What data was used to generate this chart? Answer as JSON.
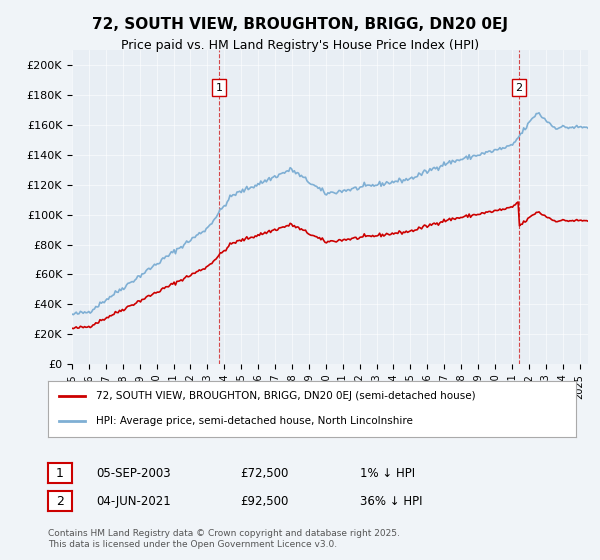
{
  "title": "72, SOUTH VIEW, BROUGHTON, BRIGG, DN20 0EJ",
  "subtitle": "Price paid vs. HM Land Registry's House Price Index (HPI)",
  "ylabel_ticks": [
    "£0",
    "£20K",
    "£40K",
    "£60K",
    "£80K",
    "£100K",
    "£120K",
    "£140K",
    "£160K",
    "£180K",
    "£200K"
  ],
  "ytick_values": [
    0,
    20000,
    40000,
    60000,
    80000,
    100000,
    120000,
    140000,
    160000,
    180000,
    200000
  ],
  "ylim": [
    0,
    210000
  ],
  "xlim_start": 1995.0,
  "xlim_end": 2025.5,
  "hpi_color": "#aac4e0",
  "price_color": "#cc0000",
  "vline_color": "#cc0000",
  "marker1_year": 2003.68,
  "marker2_year": 2021.42,
  "transaction1": {
    "label": "1",
    "date": "05-SEP-2003",
    "price": "£72,500",
    "hpi_diff": "1% ↓ HPI"
  },
  "transaction2": {
    "label": "2",
    "date": "04-JUN-2021",
    "price": "£92,500",
    "hpi_diff": "36% ↓ HPI"
  },
  "legend1": "72, SOUTH VIEW, BROUGHTON, BRIGG, DN20 0EJ (semi-detached house)",
  "legend2": "HPI: Average price, semi-detached house, North Lincolnshire",
  "footer": "Contains HM Land Registry data © Crown copyright and database right 2025.\nThis data is licensed under the Open Government Licence v3.0.",
  "background_color": "#f0f4f8",
  "plot_bg_color": "#e8eef4"
}
